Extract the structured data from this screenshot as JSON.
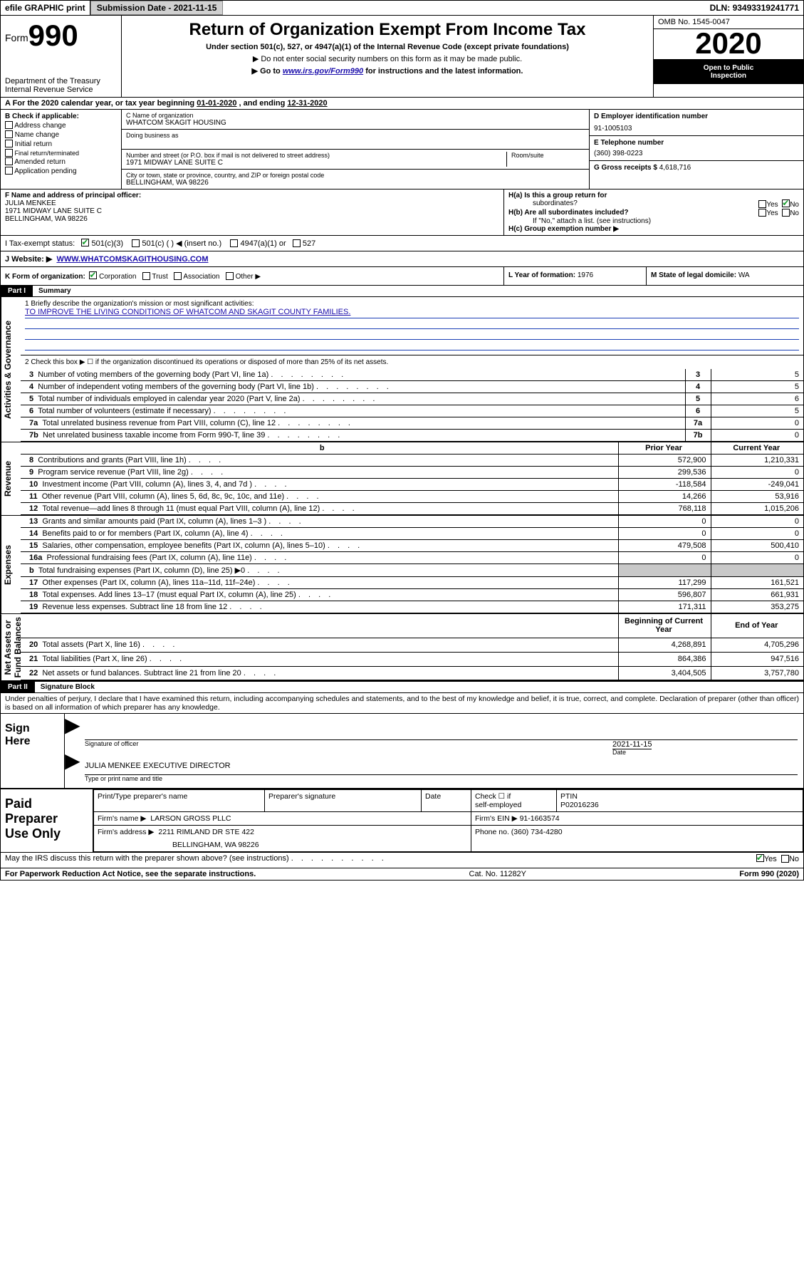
{
  "topbar": {
    "efile": "efile GRAPHIC print",
    "subdate_label": "Submission Date - ",
    "subdate": "2021-11-15",
    "dln_label": "DLN: ",
    "dln": "93493319241771"
  },
  "hdr": {
    "form_prefix": "Form",
    "form_num": "990",
    "dept": "Department of the Treasury\nInternal Revenue Service",
    "title": "Return of Organization Exempt From Income Tax",
    "sub": "Under section 501(c), 527, or 4947(a)(1) of the Internal Revenue Code (except private foundations)",
    "note1": "▶ Do not enter social security numbers on this form as it may be made public.",
    "note2_pre": "▶ Go to ",
    "note2_link": "www.irs.gov/Form990",
    "note2_post": " for instructions and the latest information.",
    "omb": "OMB No. 1545-0047",
    "year": "2020",
    "open1": "Open to Public",
    "open2": "Inspection"
  },
  "A": {
    "text_pre": "A For the 2020 calendar year, or tax year beginning ",
    "begin": "01-01-2020",
    "mid": " , and ending ",
    "end": "12-31-2020"
  },
  "B": {
    "header": "B Check if applicable:",
    "items": [
      "Address change",
      "Name change",
      "Initial return",
      "Final return/terminated",
      "Amended return",
      "Application pending"
    ]
  },
  "C": {
    "label": "C Name of organization",
    "name": "WHATCOM SKAGIT HOUSING",
    "dba_label": "Doing business as",
    "addr_label": "Number and street (or P.O. box if mail is not delivered to street address)",
    "room_label": "Room/suite",
    "addr": "1971 MIDWAY LANE SUITE C",
    "city_label": "City or town, state or province, country, and ZIP or foreign postal code",
    "city": "BELLINGHAM, WA  98226"
  },
  "D": {
    "label": "D Employer identification number",
    "val": "91-1005103"
  },
  "E": {
    "label": "E Telephone number",
    "val": "(360) 398-0223"
  },
  "G": {
    "label": "G Gross receipts $ ",
    "val": "4,618,716"
  },
  "F": {
    "label": "F  Name and address of principal officer:",
    "name": "JULIA MENKEE",
    "addr1": "1971 MIDWAY LANE SUITE C",
    "addr2": "BELLINGHAM, WA  98226"
  },
  "H": {
    "a_label": "H(a)  Is this a group return for",
    "a_label2": "subordinates?",
    "a_yes": "Yes",
    "a_no": "No",
    "b_label": "H(b)  Are all subordinates included?",
    "b_yes": "Yes",
    "b_no": "No",
    "b_note": "If \"No,\" attach a list. (see instructions)",
    "c_label": "H(c)  Group exemption number ▶"
  },
  "I": {
    "label": "I   Tax-exempt status:",
    "opts": [
      "501(c)(3)",
      "501(c) (  ) ◀ (insert no.)",
      "4947(a)(1) or",
      "527"
    ]
  },
  "J": {
    "label": "J   Website: ▶",
    "url": "WWW.WHATCOMSKAGITHOUSING.COM"
  },
  "K": {
    "label": "K Form of organization:",
    "opts": [
      "Corporation",
      "Trust",
      "Association",
      "Other ▶"
    ]
  },
  "L": {
    "label": "L Year of formation: ",
    "val": "1976"
  },
  "M": {
    "label": "M State of legal domicile: ",
    "val": "WA"
  },
  "partI": {
    "tag": "Part I",
    "title": "Summary"
  },
  "vlabels": {
    "ag": "Activities & Governance",
    "rev": "Revenue",
    "exp": "Expenses",
    "na": "Net Assets or\nFund Balances"
  },
  "q1": {
    "text": "1   Briefly describe the organization's mission or most significant activities:",
    "mission": "TO IMPROVE THE LIVING CONDITIONS OF WHATCOM AND SKAGIT COUNTY FAMILIES."
  },
  "q2": "2   Check this box ▶ ☐  if the organization discontinued its operations or disposed of more than 25% of its net assets.",
  "lines_ag": [
    {
      "n": "3",
      "t": "Number of voting members of the governing body (Part VI, line 1a)",
      "v": "5"
    },
    {
      "n": "4",
      "t": "Number of independent voting members of the governing body (Part VI, line 1b)",
      "v": "5"
    },
    {
      "n": "5",
      "t": "Total number of individuals employed in calendar year 2020 (Part V, line 2a)",
      "v": "6"
    },
    {
      "n": "6",
      "t": "Total number of volunteers (estimate if necessary)",
      "v": "5"
    },
    {
      "n": "7a",
      "t": "Total unrelated business revenue from Part VIII, column (C), line 12",
      "v": "0"
    },
    {
      "n": "7b",
      "t": "Net unrelated business taxable income from Form 990-T, line 39",
      "v": "0"
    }
  ],
  "colhdr": {
    "b": "b",
    "py": "Prior Year",
    "cy": "Current Year"
  },
  "lines_rev": [
    {
      "n": "8",
      "t": "Contributions and grants (Part VIII, line 1h)",
      "py": "572,900",
      "cy": "1,210,331"
    },
    {
      "n": "9",
      "t": "Program service revenue (Part VIII, line 2g)",
      "py": "299,536",
      "cy": "0"
    },
    {
      "n": "10",
      "t": "Investment income (Part VIII, column (A), lines 3, 4, and 7d )",
      "py": "-118,584",
      "cy": "-249,041"
    },
    {
      "n": "11",
      "t": "Other revenue (Part VIII, column (A), lines 5, 6d, 8c, 9c, 10c, and 11e)",
      "py": "14,266",
      "cy": "53,916"
    },
    {
      "n": "12",
      "t": "Total revenue—add lines 8 through 11 (must equal Part VIII, column (A), line 12)",
      "py": "768,118",
      "cy": "1,015,206"
    }
  ],
  "lines_exp": [
    {
      "n": "13",
      "t": "Grants and similar amounts paid (Part IX, column (A), lines 1–3 )",
      "py": "0",
      "cy": "0"
    },
    {
      "n": "14",
      "t": "Benefits paid to or for members (Part IX, column (A), line 4)",
      "py": "0",
      "cy": "0"
    },
    {
      "n": "15",
      "t": "Salaries, other compensation, employee benefits (Part IX, column (A), lines 5–10)",
      "py": "479,508",
      "cy": "500,410"
    },
    {
      "n": "16a",
      "t": "Professional fundraising fees (Part IX, column (A), line 11e)",
      "py": "0",
      "cy": "0"
    },
    {
      "n": "b",
      "t": "Total fundraising expenses (Part IX, column (D), line 25) ▶0",
      "py": "",
      "cy": "",
      "gray": true
    },
    {
      "n": "17",
      "t": "Other expenses (Part IX, column (A), lines 11a–11d, 11f–24e)",
      "py": "117,299",
      "cy": "161,521"
    },
    {
      "n": "18",
      "t": "Total expenses. Add lines 13–17 (must equal Part IX, column (A), line 25)",
      "py": "596,807",
      "cy": "661,931"
    },
    {
      "n": "19",
      "t": "Revenue less expenses. Subtract line 18 from line 12",
      "py": "171,311",
      "cy": "353,275"
    }
  ],
  "colhdr2": {
    "py": "Beginning of Current Year",
    "cy": "End of Year"
  },
  "lines_na": [
    {
      "n": "20",
      "t": "Total assets (Part X, line 16)",
      "py": "4,268,891",
      "cy": "4,705,296"
    },
    {
      "n": "21",
      "t": "Total liabilities (Part X, line 26)",
      "py": "864,386",
      "cy": "947,516"
    },
    {
      "n": "22",
      "t": "Net assets or fund balances. Subtract line 21 from line 20",
      "py": "3,404,505",
      "cy": "3,757,780"
    }
  ],
  "partII": {
    "tag": "Part II",
    "title": "Signature Block"
  },
  "sigtext": "Under penalties of perjury, I declare that I have examined this return, including accompanying schedules and statements, and to the best of my knowledge and belief, it is true, correct, and complete. Declaration of preparer (other than officer) is based on all information of which preparer has any knowledge.",
  "sign": {
    "side": "Sign\nHere",
    "sig_of_officer": "Signature of officer",
    "date_lbl": "Date",
    "date": "2021-11-15",
    "name": "JULIA MENKEE  EXECUTIVE DIRECTOR",
    "typeprint": "Type or print name and title"
  },
  "prep": {
    "side": "Paid\nPreparer\nUse Only",
    "c1": "Print/Type preparer's name",
    "c2": "Preparer's signature",
    "c3": "Date",
    "c4a": "Check ☐ if",
    "c4b": "self-employed",
    "c5a": "PTIN",
    "c5b": "P02016236",
    "firm_lbl": "Firm's name     ▶",
    "firm": "LARSON GROSS PLLC",
    "ein_lbl": "Firm's EIN ▶ ",
    "ein": "91-1663574",
    "addr_lbl": "Firm's address ▶",
    "addr1": "2211 RIMLAND DR STE 422",
    "addr2": "BELLINGHAM, WA  98226",
    "ph_lbl": "Phone no. ",
    "ph": "(360) 734-4280"
  },
  "discuss": {
    "q": "May the IRS discuss this return with the preparer shown above? (see instructions)",
    "yes": "Yes",
    "no": "No"
  },
  "foot": {
    "pra": "For Paperwork Reduction Act Notice, see the separate instructions.",
    "cat": "Cat. No. 11282Y",
    "form": "Form 990 (2020)"
  },
  "colors": {
    "link": "#1a0dab",
    "check": "#1a9e2f",
    "gray": "#c8c8c8",
    "rule": "#1a3fb5"
  }
}
